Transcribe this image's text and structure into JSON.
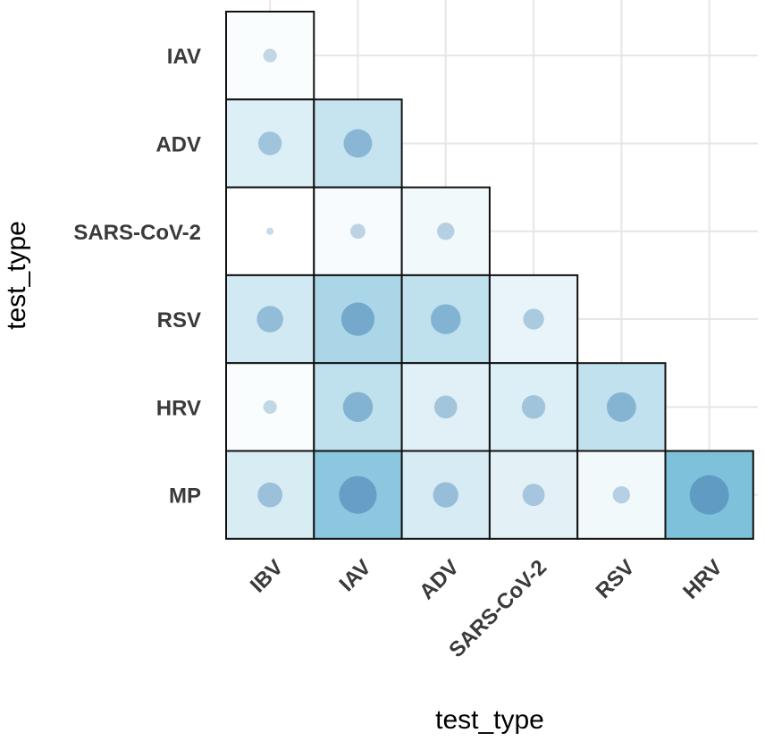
{
  "chart_data": {
    "type": "heatmap",
    "subtype": "lower-triangle correlation matrix with bubbles",
    "xlabel": "test_type",
    "ylabel": "test_type",
    "x_categories": [
      "IBV",
      "IAV",
      "ADV",
      "SARS-CoV-2",
      "RSV",
      "HRV"
    ],
    "y_categories": [
      "IAV",
      "ADV",
      "SARS-CoV-2",
      "RSV",
      "HRV",
      "MP"
    ],
    "cells": [
      {
        "row": "IAV",
        "col": "IBV",
        "value": 0.02
      },
      {
        "row": "ADV",
        "col": "IBV",
        "value": 0.13
      },
      {
        "row": "ADV",
        "col": "IAV",
        "value": 0.22
      },
      {
        "row": "SARS-CoV-2",
        "col": "IBV",
        "value": 0.0
      },
      {
        "row": "SARS-CoV-2",
        "col": "IAV",
        "value": 0.03
      },
      {
        "row": "SARS-CoV-2",
        "col": "ADV",
        "value": 0.05
      },
      {
        "row": "RSV",
        "col": "IBV",
        "value": 0.18
      },
      {
        "row": "RSV",
        "col": "IAV",
        "value": 0.33
      },
      {
        "row": "RSV",
        "col": "ADV",
        "value": 0.25
      },
      {
        "row": "RSV",
        "col": "SARS-CoV-2",
        "value": 0.09
      },
      {
        "row": "HRV",
        "col": "IBV",
        "value": 0.02
      },
      {
        "row": "HRV",
        "col": "IAV",
        "value": 0.25
      },
      {
        "row": "HRV",
        "col": "ADV",
        "value": 0.12
      },
      {
        "row": "HRV",
        "col": "SARS-CoV-2",
        "value": 0.13
      },
      {
        "row": "HRV",
        "col": "RSV",
        "value": 0.24
      },
      {
        "row": "MP",
        "col": "IBV",
        "value": 0.15
      },
      {
        "row": "MP",
        "col": "IAV",
        "value": 0.45
      },
      {
        "row": "MP",
        "col": "ADV",
        "value": 0.16
      },
      {
        "row": "MP",
        "col": "SARS-CoV-2",
        "value": 0.11
      },
      {
        "row": "MP",
        "col": "RSV",
        "value": 0.05
      },
      {
        "row": "MP",
        "col": "HRV",
        "value": 0.5
      }
    ],
    "color_low": "#ffffff",
    "color_high": "#7ec1db",
    "bubble_color": "#5b94bf",
    "grid": true,
    "legend": "none"
  }
}
